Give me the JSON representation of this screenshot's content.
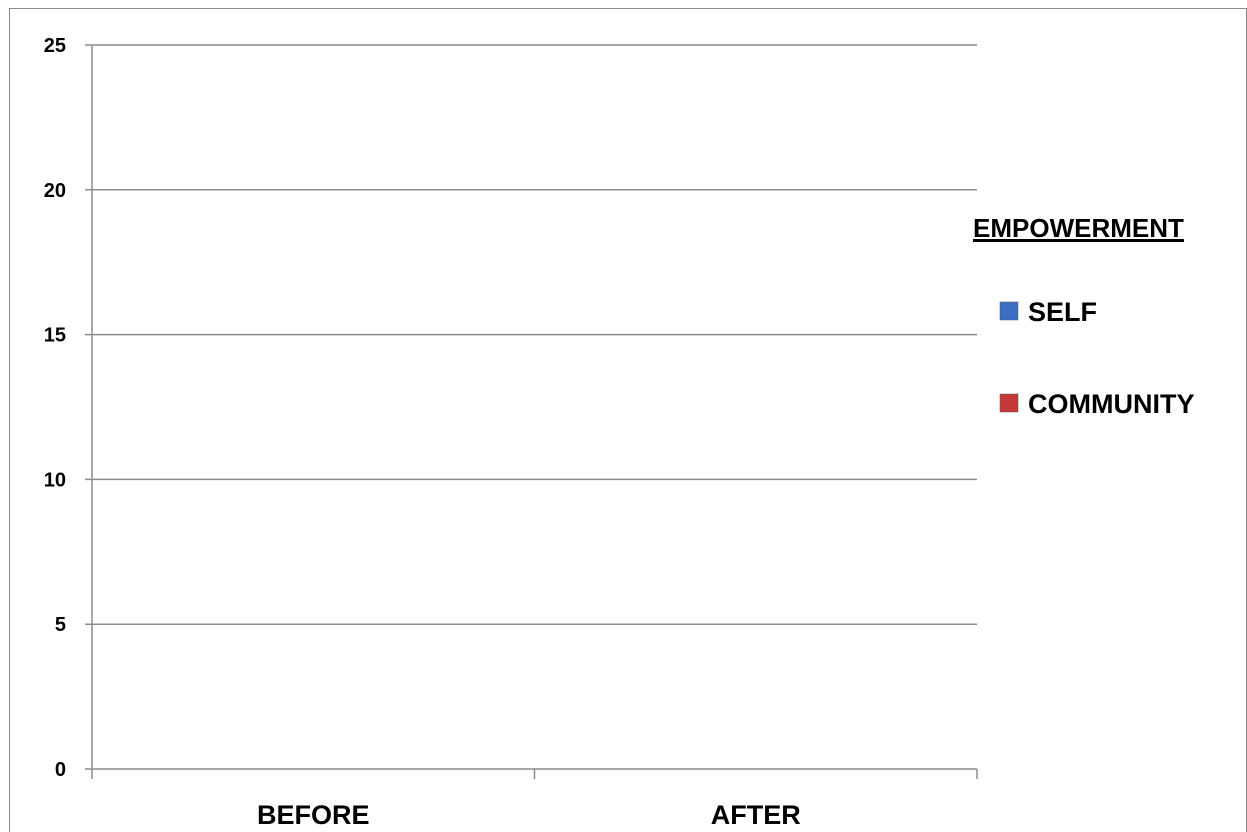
{
  "chart_data": {
    "type": "bar",
    "categories": [
      "BEFORE",
      "AFTER"
    ],
    "series": [
      {
        "name": "SELF",
        "color": "#3a6fc4",
        "values": [
          0,
          0
        ]
      },
      {
        "name": "COMMUNITY",
        "color": "#c43a3a",
        "values": [
          0,
          0
        ]
      }
    ],
    "legend_title": "EMPOWERMENT",
    "legend_position": "right",
    "ylim": [
      0,
      25
    ],
    "yticks": [
      "0",
      "5",
      "10",
      "15",
      "20",
      "25"
    ],
    "grid": true,
    "title": "",
    "xlabel": "",
    "ylabel": ""
  }
}
